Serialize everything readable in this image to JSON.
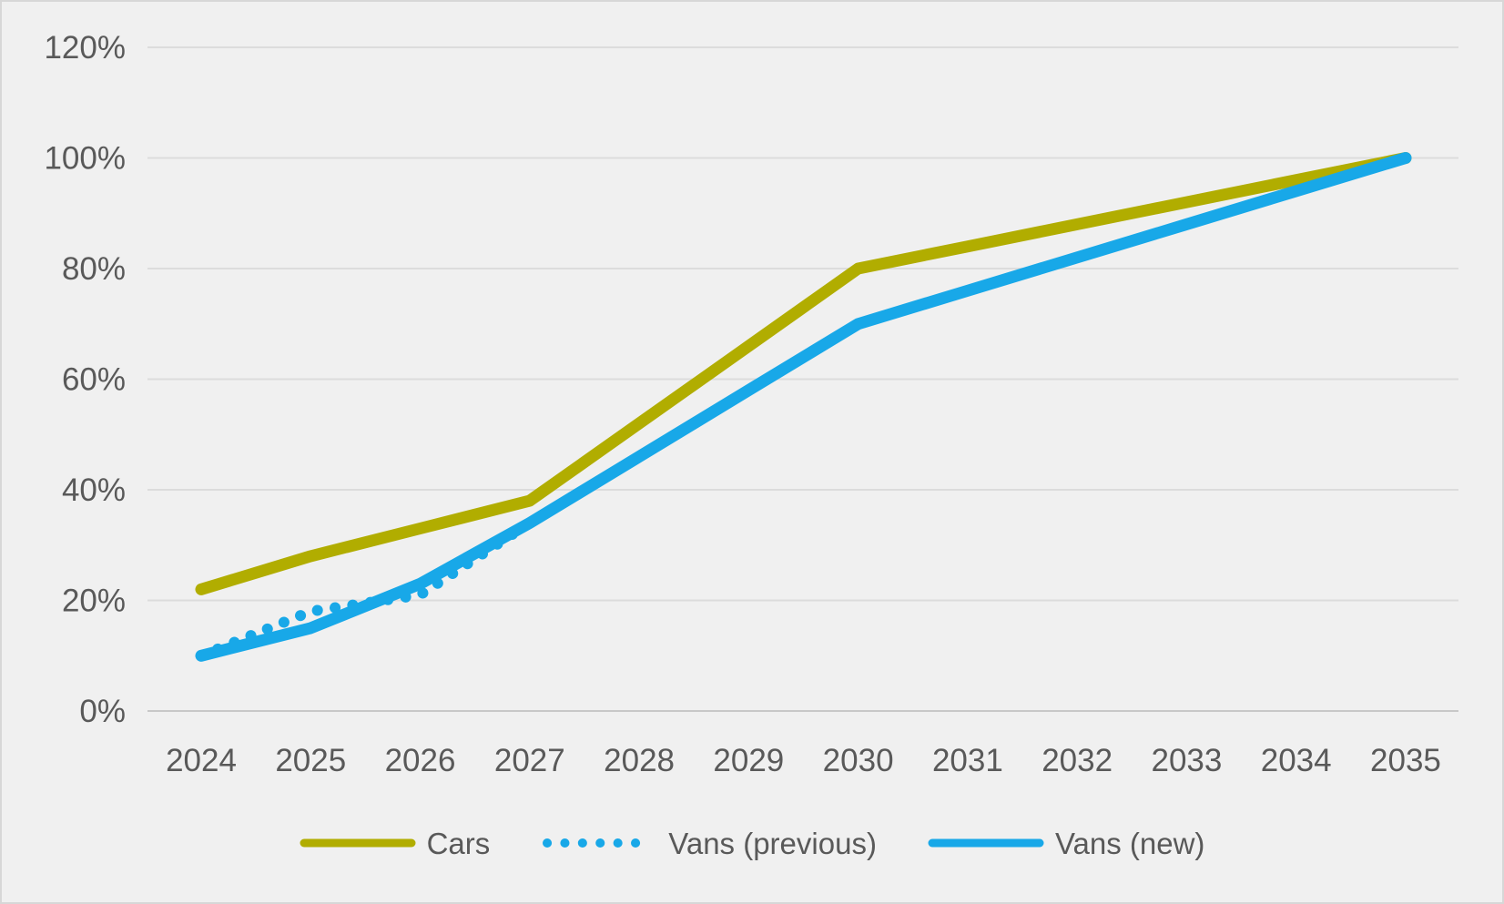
{
  "chart_data": {
    "type": "line",
    "categories": [
      "2024",
      "2025",
      "2026",
      "2027",
      "2028",
      "2029",
      "2030",
      "2031",
      "2032",
      "2033",
      "2034",
      "2035"
    ],
    "series": [
      {
        "name": "Cars",
        "color": "#b1ad00",
        "style": "solid",
        "values": [
          22,
          28,
          33,
          38,
          52,
          66,
          80,
          84,
          88,
          92,
          96,
          100
        ]
      },
      {
        "name": "Vans (previous)",
        "color": "#18a8e8",
        "style": "dotted",
        "values": [
          10,
          18,
          21,
          34,
          46,
          58,
          70,
          76,
          82,
          88,
          94,
          100
        ]
      },
      {
        "name": "Vans (new)",
        "color": "#18a8e8",
        "style": "solid",
        "values": [
          10,
          15,
          23,
          34,
          46,
          58,
          70,
          76,
          82,
          88,
          94,
          100
        ]
      }
    ],
    "title": "",
    "xlabel": "",
    "ylabel": "",
    "y_ticks": [
      "0%",
      "20%",
      "40%",
      "60%",
      "80%",
      "100%",
      "120%"
    ],
    "ylim": [
      0,
      120
    ],
    "y_tick_step": 20,
    "grid": true,
    "legend_position": "bottom"
  },
  "colors": {
    "background": "#f0f0f0",
    "border": "#d7d7d7",
    "gridline": "#dcdcdc",
    "axis_line": "#c8c8c8",
    "label_text": "#595959"
  }
}
